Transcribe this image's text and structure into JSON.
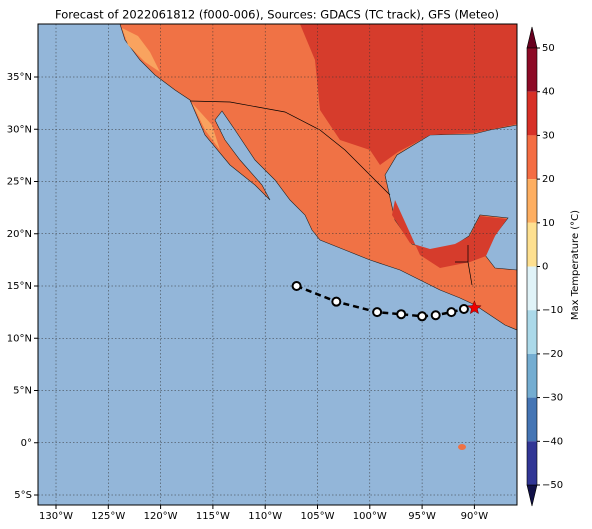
{
  "title": "Forecast of 2022061812 (f000-006), Sources: GDACS (TC track), GFS (Meteo)",
  "lon_ticks": [
    {
      "value": -130,
      "label": "130°W"
    },
    {
      "value": -125,
      "label": "125°W"
    },
    {
      "value": -120,
      "label": "120°W"
    },
    {
      "value": -115,
      "label": "115°W"
    },
    {
      "value": -110,
      "label": "110°W"
    },
    {
      "value": -105,
      "label": "105°W"
    },
    {
      "value": -100,
      "label": "100°W"
    },
    {
      "value": -95,
      "label": "95°W"
    },
    {
      "value": -90,
      "label": "90°W"
    }
  ],
  "lat_ticks": [
    {
      "value": 35,
      "label": "35°N"
    },
    {
      "value": 30,
      "label": "30°N"
    },
    {
      "value": 25,
      "label": "25°N"
    },
    {
      "value": 20,
      "label": "20°N"
    },
    {
      "value": 15,
      "label": "15°N"
    },
    {
      "value": 10,
      "label": "10°N"
    },
    {
      "value": 5,
      "label": "5°N"
    },
    {
      "value": 0,
      "label": "0°"
    },
    {
      "value": -5,
      "label": "5°S"
    }
  ],
  "colorbar": {
    "label": "Max Temperature (°C)",
    "ticks": [
      50,
      40,
      30,
      20,
      10,
      0,
      {
        "value": -10,
        "label": "−10"
      },
      {
        "value": -20,
        "label": "−20"
      },
      {
        "value": -30,
        "label": "−30"
      },
      {
        "value": -40,
        "label": "−40"
      },
      {
        "value": -50,
        "label": "−50"
      }
    ]
  },
  "track": {
    "lon": [
      -107,
      -103.2,
      -99.3,
      -97,
      -95,
      -93.7,
      -92.2,
      -91,
      -90
    ],
    "lat": [
      15,
      13.5,
      12.5,
      12.3,
      12.1,
      12.2,
      12.5,
      12.8,
      12.9
    ]
  }
}
